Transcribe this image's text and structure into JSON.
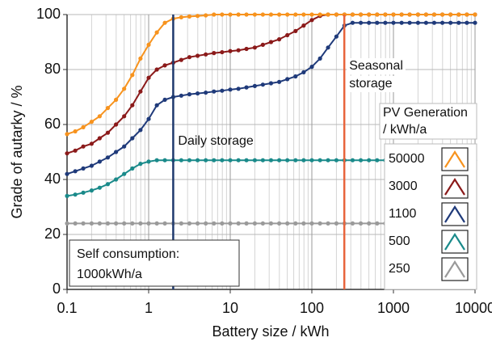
{
  "chart_data": {
    "type": "line",
    "xlabel": "Battery size / kWh",
    "ylabel": "Grade of autarky / %",
    "xscale": "log",
    "xlim": [
      0.1,
      10000
    ],
    "xticks": [
      0.1,
      1,
      10,
      100,
      1000,
      10000
    ],
    "ylim": [
      0,
      100
    ],
    "yticks": [
      0,
      20,
      40,
      60,
      80,
      100
    ],
    "grid": true,
    "minor_grid": true,
    "legend_title": [
      "PV Generation",
      "/ kWh/a"
    ],
    "legend_position": "lower right",
    "x": [
      0.1,
      0.126,
      0.158,
      0.2,
      0.251,
      0.316,
      0.398,
      0.501,
      0.631,
      0.794,
      1,
      1.26,
      1.58,
      2,
      2.51,
      3.16,
      3.98,
      5.01,
      6.31,
      7.94,
      10,
      12.6,
      15.8,
      20,
      25.1,
      31.6,
      39.8,
      50.1,
      63.1,
      79.4,
      100,
      126,
      158,
      200,
      251,
      316,
      398,
      501,
      631,
      794,
      1000,
      1260,
      1580,
      2000,
      2510,
      3160,
      3980,
      5010,
      6310,
      7940,
      10000
    ],
    "series": [
      {
        "name": "50000",
        "color": "#f7931e",
        "values": [
          56.5,
          57.5,
          59,
          61,
          63,
          66,
          69,
          73,
          78,
          84,
          89,
          93.5,
          97,
          98.5,
          99,
          99.3,
          99.5,
          99.7,
          100,
          100,
          100,
          100,
          100,
          100,
          100,
          100,
          100,
          100,
          100,
          100,
          100,
          100,
          100,
          100,
          100,
          100,
          100,
          100,
          100,
          100,
          100,
          100,
          100,
          100,
          100,
          100,
          100,
          100,
          100,
          100,
          100
        ]
      },
      {
        "name": "3000",
        "color": "#8b1a1a",
        "values": [
          49.5,
          50.5,
          52,
          53,
          55,
          57,
          60,
          63,
          67,
          72,
          77,
          80,
          81.5,
          82.5,
          83.5,
          84.5,
          85,
          85.5,
          86,
          86.3,
          86.7,
          87,
          87.5,
          88,
          89,
          90,
          91,
          92.5,
          94,
          96,
          98,
          99.5,
          100,
          100,
          100,
          100,
          100,
          100,
          100,
          100,
          100,
          100,
          100,
          100,
          100,
          100,
          100,
          100,
          100,
          100,
          100
        ]
      },
      {
        "name": "1100",
        "color": "#1f3a7a",
        "values": [
          42,
          43,
          44,
          45,
          46.5,
          48,
          50,
          52,
          55,
          58,
          62,
          67,
          69,
          70,
          70.5,
          71,
          71.3,
          71.6,
          72,
          72.3,
          72.7,
          73,
          73.5,
          74,
          74.5,
          75,
          75.5,
          76.5,
          77.5,
          79,
          81,
          84,
          88,
          92,
          96,
          97,
          97,
          97,
          97,
          97,
          97,
          97,
          97,
          97,
          97,
          97,
          97,
          97,
          97,
          97,
          97
        ]
      },
      {
        "name": "500",
        "color": "#1a8a8a",
        "values": [
          34,
          34.5,
          35.2,
          36,
          37,
          38.3,
          40,
          42,
          44,
          45.7,
          46.5,
          47,
          47,
          47,
          47,
          47,
          47,
          47,
          47,
          47,
          47,
          47,
          47,
          47,
          47,
          47,
          47,
          47,
          47,
          47,
          47,
          47,
          47,
          47,
          47,
          47,
          47,
          47,
          47,
          47,
          47,
          47,
          47,
          47,
          47,
          47,
          47,
          47,
          47,
          47,
          47
        ]
      },
      {
        "name": "250",
        "color": "#9a9a9a",
        "values": [
          24,
          24,
          24,
          24,
          24,
          24,
          24,
          24,
          24,
          24,
          24,
          24,
          24,
          24,
          24,
          24,
          24,
          24,
          24,
          24,
          24,
          24,
          24,
          24,
          24,
          24,
          24,
          24,
          24,
          24,
          24,
          24,
          24,
          24,
          24,
          24,
          24,
          24,
          24,
          24,
          24,
          24,
          24,
          24,
          24,
          24,
          24,
          24,
          24,
          24,
          24
        ]
      }
    ],
    "vlines": [
      {
        "x": 2,
        "color": "#1f3a6e",
        "label": [
          "Daily storage"
        ]
      },
      {
        "x": 250,
        "color": "#e8643c",
        "label": [
          "Seasonal",
          "storage"
        ]
      }
    ],
    "annotation": [
      "Self consumption:",
      "1000kWh/a"
    ]
  }
}
